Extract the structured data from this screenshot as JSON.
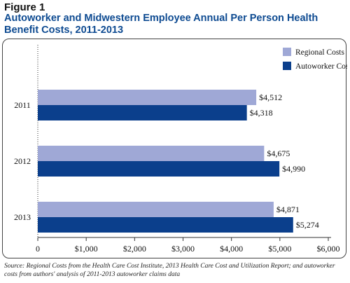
{
  "figure_label": "Figure 1",
  "title": "Autoworker and Midwestern Employee Annual Per Person Health Benefit Costs, 2011-2013",
  "source_note": "Source:  Regional Costs from the Health Care Cost Institute, 2013 Health Care Cost and Utilization Report; and autoworker costs from authors' analysis of 2011-2013 autoworker claims data",
  "colors": {
    "regional": "#9fa8d6",
    "autoworker": "#0b3f8c",
    "title": "#0d4a91"
  },
  "chart_data": {
    "type": "bar",
    "orientation": "horizontal",
    "categories": [
      "2011",
      "2012",
      "2013"
    ],
    "series": [
      {
        "name": "Regional Costs",
        "values": [
          4512,
          4675,
          4871
        ],
        "labels": [
          "$4,512",
          "$4,675",
          "$4,871"
        ]
      },
      {
        "name": "Autoworker Costs",
        "values": [
          4318,
          4990,
          5274
        ],
        "labels": [
          "$4,318",
          "$4,990",
          "$5,274"
        ]
      }
    ],
    "xlim": [
      0,
      6000
    ],
    "xticks": [
      0,
      1000,
      2000,
      3000,
      4000,
      5000,
      6000
    ],
    "xtick_labels": [
      "0",
      "$1,000",
      "$2,000",
      "$3,000",
      "$4,000",
      "$5,000",
      "$6,000"
    ],
    "legend_position": "top-right",
    "grid": false
  }
}
